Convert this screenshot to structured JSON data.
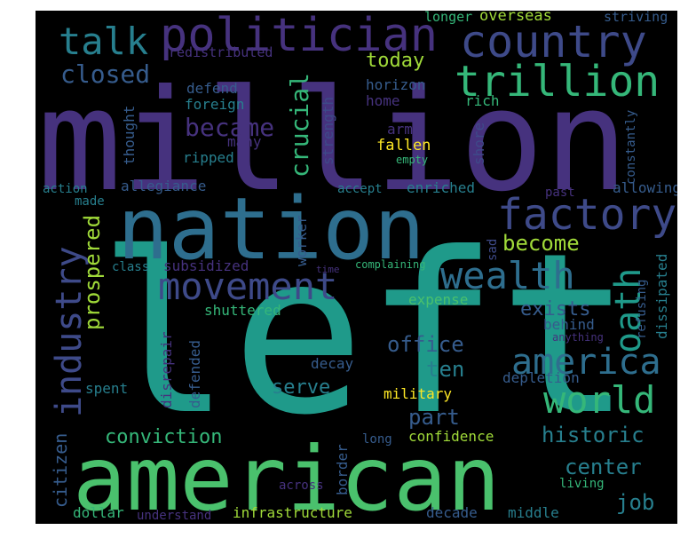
{
  "palette": {
    "purple": "#46327e",
    "indigo": "#3e4a89",
    "blue": "#365c8d",
    "steel": "#2e6e8e",
    "teal": "#277f8e",
    "teal2": "#1f9a8a",
    "green": "#35b779",
    "green2": "#4ac16d",
    "lime": "#a0da39",
    "yellow": "#fde725"
  },
  "words": [
    {
      "text": "million",
      "color": "#46327e",
      "weight": 100
    },
    {
      "text": "left",
      "color": "#1f9a8a",
      "weight": 95
    },
    {
      "text": "nation",
      "color": "#2e6e8e",
      "weight": 70
    },
    {
      "text": "american",
      "color": "#4ac16d",
      "weight": 65
    },
    {
      "text": "politician",
      "color": "#46327e",
      "weight": 45
    },
    {
      "text": "country",
      "color": "#3e4a89",
      "weight": 45
    },
    {
      "text": "trillion",
      "color": "#35b779",
      "weight": 40
    },
    {
      "text": "factory",
      "color": "#3e4a89",
      "weight": 40
    },
    {
      "text": "movement",
      "color": "#3e4a89",
      "weight": 38
    },
    {
      "text": "wealth",
      "color": "#2e6e8e",
      "weight": 36
    },
    {
      "text": "world",
      "color": "#35b779",
      "weight": 36
    },
    {
      "text": "america",
      "color": "#2e6e8e",
      "weight": 34
    },
    {
      "text": "talk",
      "color": "#277f8e",
      "weight": 34
    },
    {
      "text": "industry",
      "color": "#3e4a89",
      "weight": 34
    },
    {
      "text": "oath",
      "color": "#1f9a8a",
      "weight": 34
    },
    {
      "text": "closed",
      "color": "#365c8d",
      "weight": 26
    },
    {
      "text": "crucial",
      "color": "#35b779",
      "weight": 26
    },
    {
      "text": "became",
      "color": "#46327e",
      "weight": 26
    },
    {
      "text": "prospered",
      "color": "#a0da39",
      "weight": 24
    },
    {
      "text": "become",
      "color": "#a0da39",
      "weight": 22
    },
    {
      "text": "office",
      "color": "#365c8d",
      "weight": 22
    },
    {
      "text": "historic",
      "color": "#277f8e",
      "weight": 22
    },
    {
      "text": "job",
      "color": "#277f8e",
      "weight": 22
    },
    {
      "text": "part",
      "color": "#365c8d",
      "weight": 22
    },
    {
      "text": "center",
      "color": "#277f8e",
      "weight": 22
    },
    {
      "text": "ten",
      "color": "#277f8e",
      "weight": 22
    },
    {
      "text": "serve",
      "color": "#277f8e",
      "weight": 20
    },
    {
      "text": "today",
      "color": "#a0da39",
      "weight": 20
    },
    {
      "text": "exists",
      "color": "#365c8d",
      "weight": 20
    },
    {
      "text": "conviction",
      "color": "#35b779",
      "weight": 20
    },
    {
      "text": "citizen",
      "color": "#365c8d",
      "weight": 18
    },
    {
      "text": "overseas",
      "color": "#a0da39",
      "weight": 16
    },
    {
      "text": "longer",
      "color": "#35b779",
      "weight": 14
    },
    {
      "text": "striving",
      "color": "#365c8d",
      "weight": 14
    },
    {
      "text": "redistributed",
      "color": "#46327e",
      "weight": 14
    },
    {
      "text": "horizon",
      "color": "#365c8d",
      "weight": 16
    },
    {
      "text": "home",
      "color": "#46327e",
      "weight": 16
    },
    {
      "text": "rich",
      "color": "#35b779",
      "weight": 16
    },
    {
      "text": "army",
      "color": "#46327e",
      "weight": 16
    },
    {
      "text": "fallen",
      "color": "#fde725",
      "weight": 16
    },
    {
      "text": "empty",
      "color": "#35b779",
      "weight": 12
    },
    {
      "text": "defend",
      "color": "#365c8d",
      "weight": 16
    },
    {
      "text": "foreign",
      "color": "#277f8e",
      "weight": 16
    },
    {
      "text": "many",
      "color": "#46327e",
      "weight": 16
    },
    {
      "text": "ripped",
      "color": "#277f8e",
      "weight": 16
    },
    {
      "text": "thought",
      "color": "#365c8d",
      "weight": 16
    },
    {
      "text": "strength",
      "color": "#3e4a89",
      "weight": 16
    },
    {
      "text": "shore",
      "color": "#3e4a89",
      "weight": 16
    },
    {
      "text": "constantly",
      "color": "#365c8d",
      "weight": 14
    },
    {
      "text": "allegiance",
      "color": "#365c8d",
      "weight": 16
    },
    {
      "text": "action",
      "color": "#277f8e",
      "weight": 14
    },
    {
      "text": "made",
      "color": "#277f8e",
      "weight": 14
    },
    {
      "text": "accept",
      "color": "#277f8e",
      "weight": 14
    },
    {
      "text": "enriched",
      "color": "#277f8e",
      "weight": 16
    },
    {
      "text": "past",
      "color": "#46327e",
      "weight": 14
    },
    {
      "text": "allowing",
      "color": "#365c8d",
      "weight": 16
    },
    {
      "text": "worker",
      "color": "#365c8d",
      "weight": 16
    },
    {
      "text": "sad",
      "color": "#3e4a89",
      "weight": 14
    },
    {
      "text": "refusing",
      "color": "#365c8d",
      "weight": 14
    },
    {
      "text": "dissipated",
      "color": "#277f8e",
      "weight": 16
    },
    {
      "text": "class",
      "color": "#277f8e",
      "weight": 14
    },
    {
      "text": "subsidized",
      "color": "#46327e",
      "weight": 16
    },
    {
      "text": "time",
      "color": "#46327e",
      "weight": 10
    },
    {
      "text": "complaining",
      "color": "#35b779",
      "weight": 12
    },
    {
      "text": "shuttered",
      "color": "#35b779",
      "weight": 16
    },
    {
      "text": "expense",
      "color": "#4ac16d",
      "weight": 16
    },
    {
      "text": "behind",
      "color": "#365c8d",
      "weight": 16
    },
    {
      "text": "anything",
      "color": "#46327e",
      "weight": 12
    },
    {
      "text": "defended",
      "color": "#365c8d",
      "weight": 16
    },
    {
      "text": "disrepair",
      "color": "#46327e",
      "weight": 16
    },
    {
      "text": "decay",
      "color": "#365c8d",
      "weight": 16
    },
    {
      "text": "spent",
      "color": "#277f8e",
      "weight": 16
    },
    {
      "text": "military",
      "color": "#fde725",
      "weight": 16
    },
    {
      "text": "depletion",
      "color": "#365c8d",
      "weight": 16
    },
    {
      "text": "confidence",
      "color": "#a0da39",
      "weight": 16
    },
    {
      "text": "long",
      "color": "#365c8d",
      "weight": 14
    },
    {
      "text": "border",
      "color": "#365c8d",
      "weight": 16
    },
    {
      "text": "across",
      "color": "#46327e",
      "weight": 14
    },
    {
      "text": "living",
      "color": "#35b779",
      "weight": 14
    },
    {
      "text": "dollar",
      "color": "#35b779",
      "weight": 16
    },
    {
      "text": "understand",
      "color": "#46327e",
      "weight": 14
    },
    {
      "text": "infrastructure",
      "color": "#a0da39",
      "weight": 16
    },
    {
      "text": "decade",
      "color": "#365c8d",
      "weight": 16
    },
    {
      "text": "middle",
      "color": "#277f8e",
      "weight": 16
    }
  ]
}
